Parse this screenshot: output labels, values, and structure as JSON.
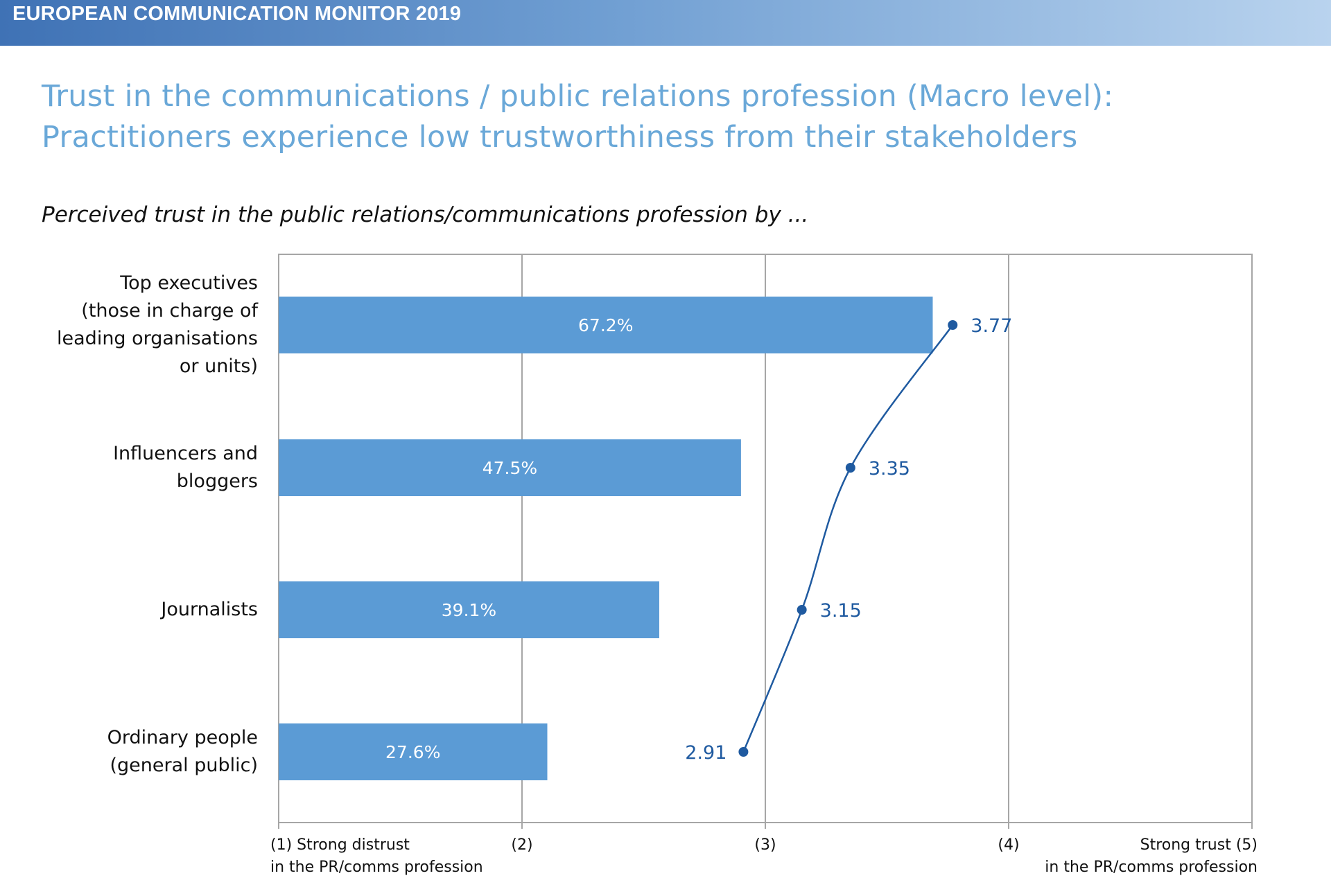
{
  "header": {
    "title": "EUROPEAN COMMUNICATION MONITOR 2019"
  },
  "slide": {
    "title_line1": "Trust in the communications / public relations profession (Macro level):",
    "title_line2": "Practitioners experience low trustworthiness from their stakeholders",
    "subtitle": "Perceived trust in the public relations/communications profession by ..."
  },
  "colors": {
    "title": "#6aa8d8",
    "bar": "#5b9bd5",
    "line": "#1f5aa0",
    "grid": "#a6a6a6"
  },
  "chart_data": {
    "type": "bar",
    "categories": [
      "Top executives\n(those in charge of\nleading organisations\nor units)",
      "Influencers and\nbloggers",
      "Journalists",
      "Ordinary people\n(general public)"
    ],
    "series": [
      {
        "type": "bar",
        "values": [
          67.2,
          47.5,
          39.1,
          27.6
        ],
        "labels": [
          "67.2%",
          "47.5%",
          "39.1%",
          "27.6%"
        ]
      },
      {
        "type": "line",
        "values": [
          3.77,
          3.35,
          3.15,
          2.91
        ],
        "labels": [
          "3.77",
          "3.35",
          "3.15",
          "2.91"
        ]
      }
    ],
    "x_axis": {
      "range": [
        1,
        5
      ],
      "ticks": [
        1,
        2,
        3,
        4,
        5
      ],
      "tick_labels": [
        "(1) Strong distrust\nin the PR/comms profession",
        "(2)",
        "(3)",
        "(4)",
        "Strong trust (5)\nin the PR/comms profession"
      ]
    },
    "bar_range_percent": [
      0,
      100
    ],
    "grid": true
  }
}
